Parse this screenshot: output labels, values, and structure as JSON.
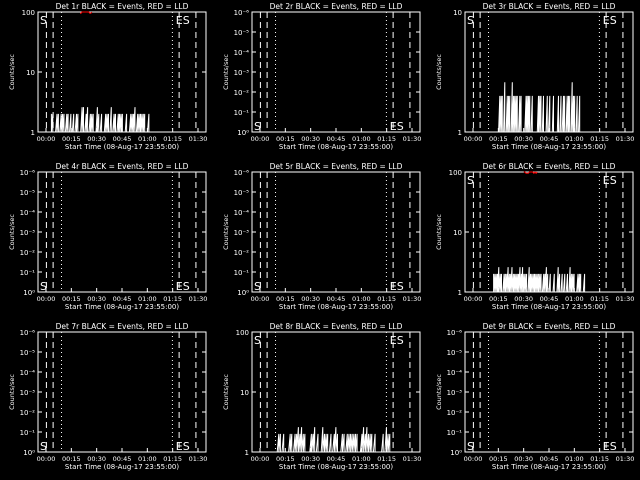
{
  "colors": {
    "background": "#000000",
    "foreground": "#ffffff",
    "lld": "#ff0000"
  },
  "ylabel": "Counts/sec",
  "xlabel": "Start Time (08-Aug-17 23:55:00)",
  "xticks": [
    "00:00",
    "00:15",
    "00:30",
    "00:45",
    "01:00",
    "01:15",
    "01:30"
  ],
  "chart_data": [
    {
      "type": "line",
      "title": "Det 1r BLACK = Events, RED = LLD",
      "ylog": true,
      "ylim": [
        1,
        100
      ],
      "yticks": [
        "1",
        "10",
        "100"
      ],
      "markers": [
        "S",
        "ES"
      ],
      "series": [
        {
          "color": "black-events",
          "segments": [
            [
              0.08,
              0.66,
              1,
              2
            ]
          ]
        },
        {
          "color": "lld",
          "segments": [
            [
              0.25,
              0.32,
              95,
              100
            ]
          ]
        }
      ]
    },
    {
      "type": "line",
      "title": "Det 2r BLACK = Events, RED = LLD",
      "ylog": true,
      "ylim": [
        1,
        1e-06
      ],
      "yticks": [
        "10⁰",
        "10⁻¹",
        "10⁻²",
        "10⁻³",
        "10⁻⁴",
        "10⁻⁵",
        "10⁻⁶"
      ],
      "markers": [
        "S",
        "ES"
      ],
      "series": []
    },
    {
      "type": "line",
      "title": "Det 3r BLACK = Events, RED = LLD",
      "ylog": true,
      "ylim": [
        1,
        10
      ],
      "yticks": [
        "1",
        "10"
      ],
      "markers": [
        "S",
        "ES"
      ],
      "series": [
        {
          "color": "black-events",
          "segments": [
            [
              0.2,
              0.72,
              1,
              2
            ]
          ]
        }
      ]
    },
    {
      "type": "line",
      "title": "Det 4r BLACK = Events, RED = LLD",
      "ylog": true,
      "ylim": [
        1,
        1e-06
      ],
      "yticks": [
        "10⁰",
        "10⁻¹",
        "10⁻²",
        "10⁻³",
        "10⁻⁴",
        "10⁻⁵",
        "10⁻⁶"
      ],
      "markers": [
        "S",
        "ES"
      ],
      "series": []
    },
    {
      "type": "line",
      "title": "Det 5r BLACK = Events, RED = LLD",
      "ylog": true,
      "ylim": [
        1,
        1e-06
      ],
      "yticks": [
        "10⁰",
        "10⁻¹",
        "10⁻²",
        "10⁻³",
        "10⁻⁴",
        "10⁻⁵",
        "10⁻⁶"
      ],
      "markers": [
        "S",
        "ES"
      ],
      "series": []
    },
    {
      "type": "line",
      "title": "Det 6r BLACK = Events, RED = LLD",
      "ylog": true,
      "ylim": [
        1,
        100
      ],
      "yticks": [
        "1",
        "10",
        "100"
      ],
      "markers": [
        "S",
        "ES"
      ],
      "series": [
        {
          "color": "black-events",
          "segments": [
            [
              0.17,
              0.72,
              1,
              2
            ]
          ]
        },
        {
          "color": "lld",
          "segments": [
            [
              0.35,
              0.43,
              95,
              100
            ]
          ]
        }
      ]
    },
    {
      "type": "line",
      "title": "Det 7r BLACK = Events, RED = LLD",
      "ylog": true,
      "ylim": [
        1,
        1e-06
      ],
      "yticks": [
        "10⁰",
        "10⁻¹",
        "10⁻²",
        "10⁻³",
        "10⁻⁴",
        "10⁻⁵",
        "10⁻⁶"
      ],
      "markers": [
        "S",
        "ES"
      ],
      "series": []
    },
    {
      "type": "line",
      "title": "Det 8r BLACK = Events, RED = LLD",
      "ylog": true,
      "ylim": [
        1,
        100
      ],
      "yticks": [
        "1",
        "10",
        "100"
      ],
      "markers": [
        "S",
        "ES"
      ],
      "series": [
        {
          "color": "black-events",
          "segments": [
            [
              0.14,
              0.82,
              1,
              2
            ]
          ]
        }
      ]
    },
    {
      "type": "line",
      "title": "Det 9r BLACK = Events, RED = LLD",
      "ylog": true,
      "ylim": [
        1,
        1e-06
      ],
      "yticks": [
        "10⁰",
        "10⁻¹",
        "10⁻²",
        "10⁻³",
        "10⁻⁴",
        "10⁻⁵",
        "10⁻⁶"
      ],
      "markers": [
        "S",
        "ES"
      ],
      "series": []
    }
  ]
}
